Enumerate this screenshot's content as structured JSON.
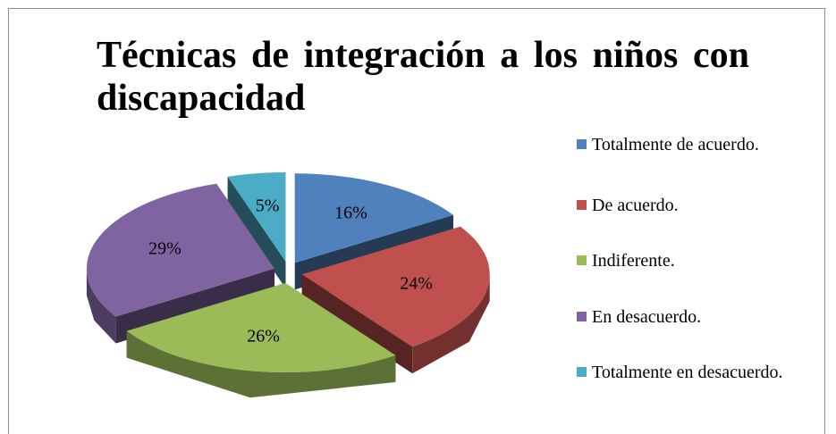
{
  "chart_data": {
    "type": "pie3d",
    "title": "Técnicas de integración a los niños con discapacidad",
    "categories": [
      "Totalmente de acuerdo.",
      "De acuerdo.",
      "Indiferente.",
      "En desacuerdo.",
      "Totalmente en desacuerdo."
    ],
    "values": [
      16,
      24,
      26,
      29,
      5
    ],
    "value_labels": [
      "16%",
      "24%",
      "26%",
      "29%",
      "5%"
    ],
    "colors": [
      "#4f81bd",
      "#c0504d",
      "#9bbb59",
      "#8064a2",
      "#4bacc6"
    ],
    "legend": "right"
  }
}
